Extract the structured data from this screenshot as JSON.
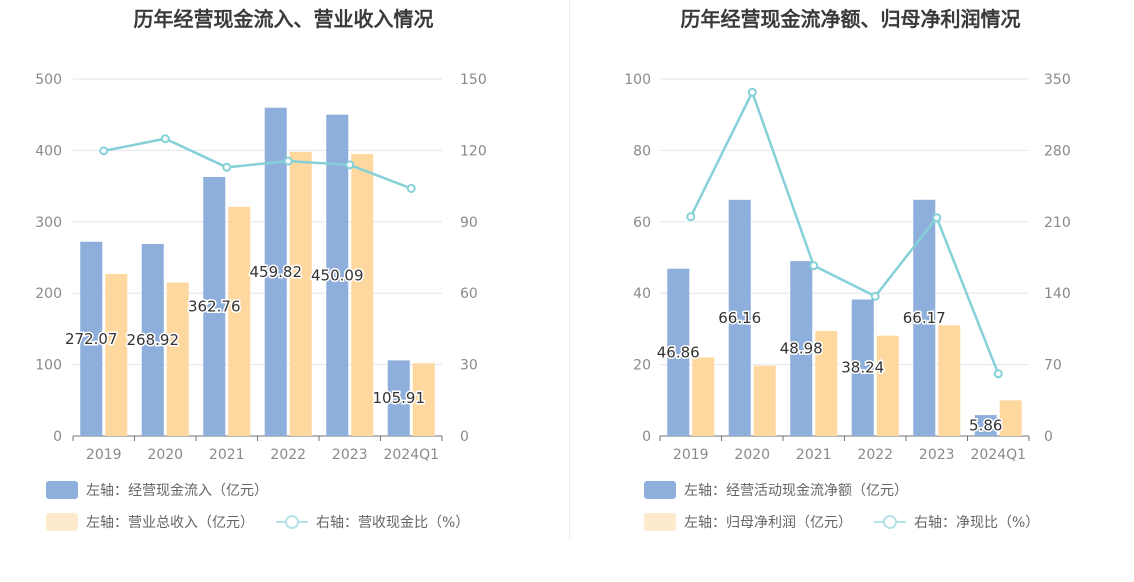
{
  "colors": {
    "bar_primary": "#8eaedb",
    "bar_secondary": "#ffd89f",
    "line": "#86d0d8",
    "legend_secondary": "#fdebcb",
    "legend_line": "#b5e2e7",
    "axis_text": "#8a8a8a",
    "grid": "#e3e6f0",
    "label_text": "#333333"
  },
  "chart_data": [
    {
      "type": "bar",
      "title": "历年经营现金流入、营业收入情况",
      "categories": [
        "2019",
        "2020",
        "2021",
        "2022",
        "2023",
        "2024Q1"
      ],
      "y_left": {
        "ylim": [
          0,
          500
        ],
        "ticks": [
          "0",
          "100",
          "200",
          "300",
          "400",
          "500"
        ]
      },
      "y_right": {
        "ylim": [
          0,
          150
        ],
        "ticks": [
          "0",
          "30",
          "60",
          "90",
          "120",
          "150"
        ]
      },
      "grid": true,
      "legend_position": "bottom-left",
      "series": [
        {
          "name": "左轴：经营现金流入（亿元）",
          "kind": "bar",
          "axis": "left",
          "values": [
            272.07,
            268.92,
            362.76,
            459.82,
            450.09,
            105.91
          ],
          "labels": [
            "272.07",
            "268.92",
            "362.76",
            "459.82",
            "450.09",
            "105.91"
          ]
        },
        {
          "name": "左轴：营业总收入（亿元）",
          "kind": "bar",
          "axis": "left",
          "values": [
            227,
            215,
            321,
            398,
            395,
            102
          ]
        },
        {
          "name": "右轴：营收现金比（%）",
          "kind": "line",
          "axis": "right",
          "values": [
            119.8,
            124.9,
            112.9,
            115.5,
            113.9,
            104
          ]
        }
      ]
    },
    {
      "type": "bar",
      "title": "历年经营现金流净额、归母净利润情况",
      "categories": [
        "2019",
        "2020",
        "2021",
        "2022",
        "2023",
        "2024Q1"
      ],
      "y_left": {
        "ylim": [
          0,
          100
        ],
        "ticks": [
          "0",
          "20",
          "40",
          "60",
          "80",
          "100"
        ]
      },
      "y_right": {
        "ylim": [
          0,
          350
        ],
        "ticks": [
          "0",
          "70",
          "140",
          "210",
          "280",
          "350"
        ]
      },
      "grid": true,
      "legend_position": "bottom-left",
      "series": [
        {
          "name": "左轴：经营活动现金流净额（亿元）",
          "kind": "bar",
          "axis": "left",
          "values": [
            46.86,
            66.16,
            48.98,
            38.24,
            66.17,
            5.86
          ],
          "labels": [
            "46.86",
            "66.16",
            "48.98",
            "38.24",
            "66.17",
            "5.86"
          ]
        },
        {
          "name": "左轴：归母净利润（亿元）",
          "kind": "bar",
          "axis": "left",
          "values": [
            22,
            19.7,
            29.4,
            28.1,
            31,
            10
          ]
        },
        {
          "name": "右轴：净现比（%）",
          "kind": "line",
          "axis": "right",
          "values": [
            215,
            337,
            167,
            137,
            214,
            61
          ]
        }
      ]
    }
  ]
}
